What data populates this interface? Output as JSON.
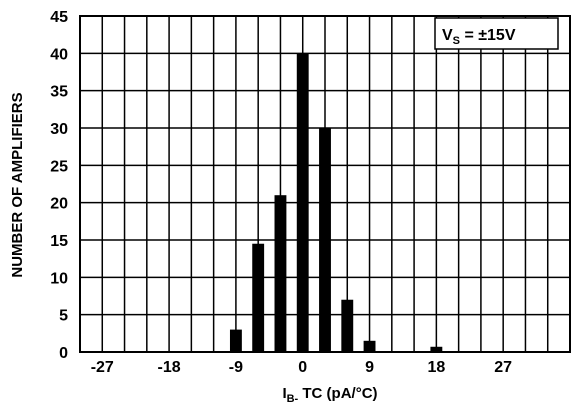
{
  "chart_data": {
    "type": "bar",
    "title": "",
    "xlabel": {
      "main": "I",
      "sub": "B-",
      "rest": " TC (pA/°C)"
    },
    "ylabel": "NUMBER OF AMPLIFIERS",
    "xlim": [
      -30,
      36
    ],
    "ylim": [
      0,
      45
    ],
    "x_ticks": [
      -27,
      -18,
      -9,
      0,
      9,
      18,
      27
    ],
    "x_tick_labels": [
      "-27",
      "-18",
      "-9",
      "0",
      "9",
      "18",
      "27"
    ],
    "y_ticks": [
      0,
      5,
      10,
      15,
      20,
      25,
      30,
      35,
      40,
      45
    ],
    "y_tick_labels": [
      "0",
      "5",
      "10",
      "15",
      "20",
      "25",
      "30",
      "35",
      "40",
      "45"
    ],
    "grid": true,
    "bar_width": 1.6,
    "bar_color": "#000000",
    "bars": [
      {
        "x": -9,
        "value": 3
      },
      {
        "x": -6,
        "value": 14.5
      },
      {
        "x": -3,
        "value": 21
      },
      {
        "x": 0,
        "value": 40
      },
      {
        "x": 3,
        "value": 30
      },
      {
        "x": 6,
        "value": 7
      },
      {
        "x": 9,
        "value": 1.5
      },
      {
        "x": 18,
        "value": 0.7
      }
    ],
    "annotation": {
      "main": "V",
      "sub": "S",
      "rest": " = ±15V",
      "position": "top-right"
    }
  }
}
